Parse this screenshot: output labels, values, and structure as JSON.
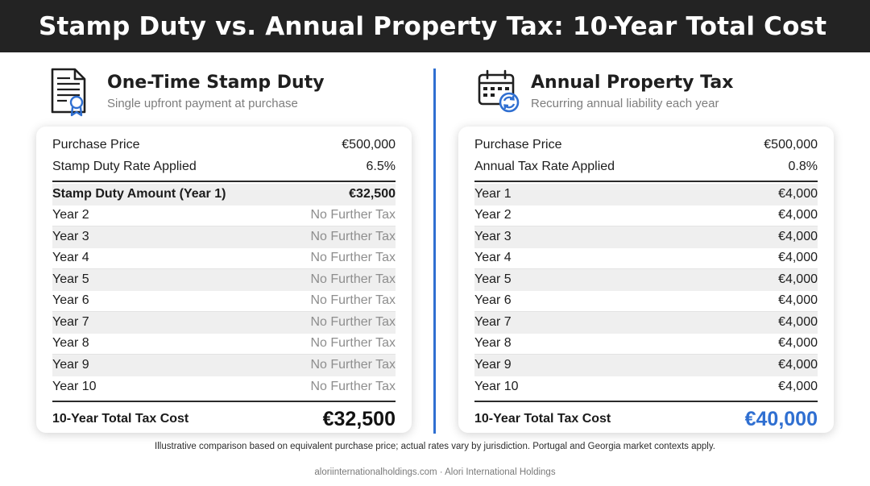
{
  "title": "Stamp Duty vs. Annual Property Tax: 10-Year Total Cost",
  "colors": {
    "accent": "#2f6fd1",
    "header_bg": "#232323"
  },
  "left": {
    "icon": "document-certificate-icon",
    "heading": "One-Time Stamp Duty",
    "subheading": "Single upfront payment at purchase",
    "rows_top": [
      {
        "label": "Purchase Price",
        "value": "€500,000"
      },
      {
        "label": "Stamp Duty Rate Applied",
        "value": "6.5%"
      }
    ],
    "rows": [
      {
        "label": "Stamp Duty Amount (Year 1)",
        "value": "€32,500"
      },
      {
        "label": "Year 2",
        "value": "No Further Tax"
      },
      {
        "label": "Year 3",
        "value": "No Further Tax"
      },
      {
        "label": "Year 4",
        "value": "No Further Tax"
      },
      {
        "label": "Year 5",
        "value": "No Further Tax"
      },
      {
        "label": "Year 6",
        "value": "No Further Tax"
      },
      {
        "label": "Year 7",
        "value": "No Further Tax"
      },
      {
        "label": "Year 8",
        "value": "No Further Tax"
      },
      {
        "label": "Year 9",
        "value": "No Further Tax"
      },
      {
        "label": "Year 10",
        "value": "No Further Tax"
      }
    ],
    "total_label": "10-Year Total Tax Cost",
    "total_value": "€32,500"
  },
  "right": {
    "icon": "calendar-recurring-icon",
    "heading": "Annual Property Tax",
    "subheading": "Recurring annual liability each year",
    "rows_top": [
      {
        "label": "Purchase Price",
        "value": "€500,000"
      },
      {
        "label": "Annual Tax Rate Applied",
        "value": "0.8%"
      }
    ],
    "rows": [
      {
        "label": "Year 1",
        "value": "€4,000"
      },
      {
        "label": "Year 2",
        "value": "€4,000"
      },
      {
        "label": "Year 3",
        "value": "€4,000"
      },
      {
        "label": "Year 4",
        "value": "€4,000"
      },
      {
        "label": "Year 5",
        "value": "€4,000"
      },
      {
        "label": "Year 6",
        "value": "€4,000"
      },
      {
        "label": "Year 7",
        "value": "€4,000"
      },
      {
        "label": "Year 8",
        "value": "€4,000"
      },
      {
        "label": "Year 9",
        "value": "€4,000"
      },
      {
        "label": "Year 10",
        "value": "€4,000"
      }
    ],
    "total_label": "10-Year Total Tax Cost",
    "total_value": "€40,000"
  },
  "footnote": "Illustrative comparison based on equivalent purchase price; actual rates vary by jurisdiction. Portugal and Georgia market contexts apply.",
  "footer": "aloriinternationalholdings.com · Alori International Holdings"
}
